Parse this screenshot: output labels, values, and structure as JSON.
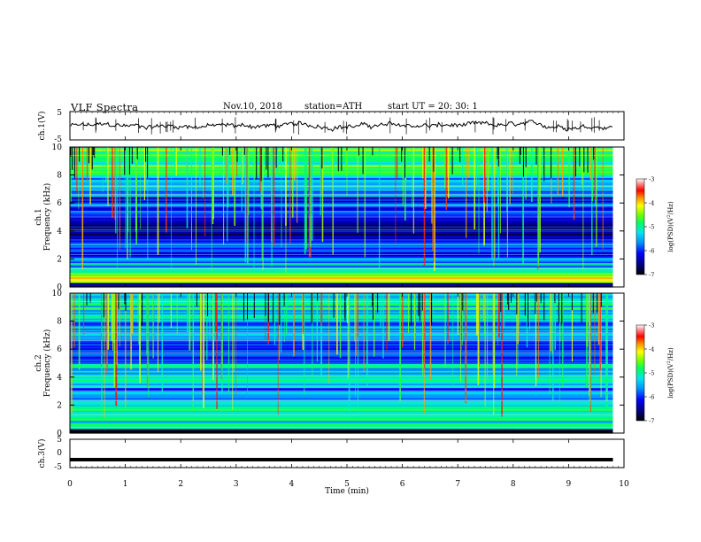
{
  "header": {
    "title": "VLF  Spectra",
    "date": "Nov.10, 2018",
    "station": "station=ATH",
    "start": "start  UT  =    20: 30: 1"
  },
  "chart_data": [
    {
      "type": "line",
      "name": "ch1-waveform",
      "ylabel": "ch.1(V)",
      "ylim": [
        -5,
        5
      ],
      "y_ticks": [
        "5",
        "-5"
      ],
      "x_range_min": [
        0,
        9.8
      ],
      "baseline": 0,
      "noise_band": 1.2,
      "grid": false
    },
    {
      "type": "heatmap",
      "name": "ch1-spectrogram",
      "ylabel": "ch.1\nFrequency  (kHz)",
      "xlim": [
        0,
        10
      ],
      "x_data_max": 9.8,
      "ylim": [
        0,
        10
      ],
      "y_ticks": [
        "0",
        "2",
        "4",
        "6",
        "8",
        "10"
      ],
      "colorbar": {
        "label": "log(PSD)(V²/Hz)",
        "range": [
          -7,
          -3
        ],
        "ticks": [
          "-3",
          "-4",
          "-5",
          "-6",
          "-7"
        ]
      },
      "spectrum_profile": [
        {
          "f_min": 0,
          "f_max": 0.3,
          "level": -6.6
        },
        {
          "f_min": 0.3,
          "f_max": 1,
          "level": -4.3
        },
        {
          "f_min": 1,
          "f_max": 2,
          "level": -5.4
        },
        {
          "f_min": 2,
          "f_max": 3.5,
          "level": -6.0
        },
        {
          "f_min": 3.5,
          "f_max": 5,
          "level": -6.5
        },
        {
          "f_min": 5,
          "f_max": 6.5,
          "level": -6.0
        },
        {
          "f_min": 6.5,
          "f_max": 8,
          "level": -5.5
        },
        {
          "f_min": 8,
          "f_max": 10,
          "level": -4.8
        }
      ],
      "spheric_lines": 150
    },
    {
      "type": "heatmap",
      "name": "ch2-spectrogram",
      "ylabel": "ch.2\nFrequency  (kHz)",
      "xlim": [
        0,
        10
      ],
      "x_data_max": 9.8,
      "ylim": [
        0,
        10
      ],
      "y_ticks": [
        "0",
        "2",
        "4",
        "6",
        "8",
        "10"
      ],
      "colorbar": {
        "label": "log(PSD)(V²/Hz)",
        "range": [
          -7,
          -3
        ],
        "ticks": [
          "-3",
          "-4",
          "-5",
          "-6",
          "-7"
        ]
      },
      "spectrum_profile": [
        {
          "f_min": 0,
          "f_max": 0.3,
          "level": -6.8
        },
        {
          "f_min": 0.3,
          "f_max": 2,
          "level": -5.1
        },
        {
          "f_min": 2,
          "f_max": 3.5,
          "level": -5.6
        },
        {
          "f_min": 3.5,
          "f_max": 5,
          "level": -5.4
        },
        {
          "f_min": 5,
          "f_max": 6.5,
          "level": -5.8
        },
        {
          "f_min": 6.5,
          "f_max": 8,
          "level": -5.6
        },
        {
          "f_min": 8,
          "f_max": 10,
          "level": -5.2
        }
      ],
      "spheric_lines": 160
    },
    {
      "type": "line",
      "name": "ch3-waveform",
      "ylabel": "ch.3(V)",
      "xlabel": "Time  (min)",
      "xlim": [
        0,
        10
      ],
      "x_ticks": [
        "0",
        "1",
        "2",
        "3",
        "4",
        "5",
        "6",
        "7",
        "8",
        "9",
        "10"
      ],
      "ylim": [
        -5,
        5
      ],
      "y_ticks": [
        "5",
        "0",
        "-5"
      ],
      "x_range_min": [
        0,
        9.8
      ],
      "constant_value": -2.2,
      "grid": false
    }
  ]
}
